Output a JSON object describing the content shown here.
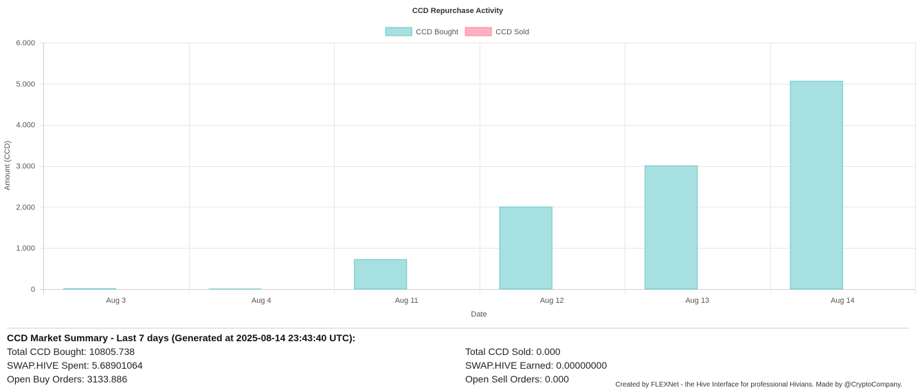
{
  "chart_data": {
    "type": "bar",
    "title": "CCD Repurchase Activity",
    "xlabel": "Date",
    "ylabel": "Amount (CCD)",
    "categories": [
      "Aug 3",
      "Aug 4",
      "Aug 11",
      "Aug 12",
      "Aug 13",
      "Aug 14"
    ],
    "series": [
      {
        "name": "CCD Bought",
        "values": [
          8,
          3,
          720,
          2000,
          3000,
          5060
        ],
        "color": "#a6e0e0",
        "border": "#6cc6c6"
      },
      {
        "name": "CCD Sold",
        "values": [
          0,
          0,
          0,
          0,
          0,
          0
        ],
        "color": "#ffb1c1",
        "border": "#ff7f9a"
      }
    ],
    "ylim": [
      0,
      6000
    ],
    "yticks": [
      0,
      1000,
      2000,
      3000,
      4000,
      5000,
      6000
    ],
    "ytick_labels": [
      "0",
      "1.000",
      "2.000",
      "3.000",
      "4.000",
      "5.000",
      "6.000"
    ],
    "grid": true,
    "legend_position": "top"
  },
  "summary": {
    "title": "CCD Market Summary - Last 7 days (Generated at 2025-08-14 23:43:40 UTC):",
    "total_bought": "Total CCD Bought: 10805.738",
    "hive_spent": "SWAP.HIVE Spent: 5.68901064",
    "open_buy": "Open Buy Orders: 3133.886",
    "total_sold": "Total CCD Sold: 0.000",
    "hive_earned": "SWAP.HIVE Earned: 0.00000000",
    "open_sell": "Open Sell Orders: 0.000"
  },
  "footer": {
    "credit": "Created by FLEXNet - the Hive Interface for professional Hivians. Made by @CryptoCompany."
  }
}
